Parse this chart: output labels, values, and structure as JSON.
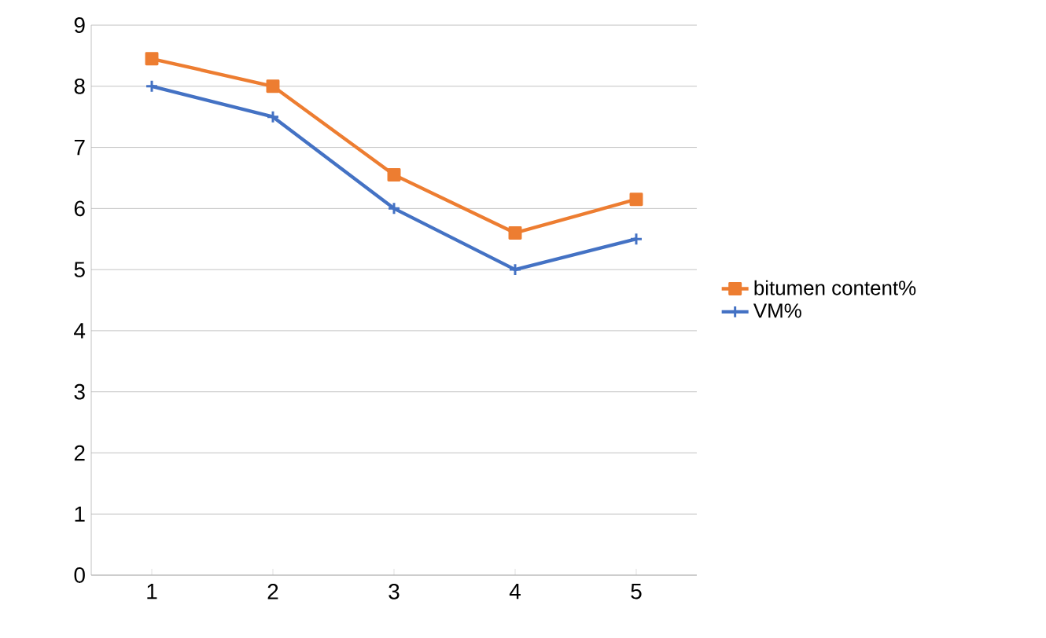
{
  "chart_data": {
    "type": "line",
    "categories": [
      "1",
      "2",
      "3",
      "4",
      "5"
    ],
    "series": [
      {
        "name": "bitumen content%",
        "color": "#ed7d31",
        "marker": "square",
        "values": [
          8.45,
          8.0,
          6.55,
          5.6,
          6.15
        ]
      },
      {
        "name": "VM%",
        "color": "#4472c4",
        "marker": "cross",
        "values": [
          8.0,
          7.5,
          6.0,
          5.0,
          5.5
        ]
      }
    ],
    "ylim": [
      0,
      9
    ],
    "yticks": [
      0,
      1,
      2,
      3,
      4,
      5,
      6,
      7,
      8,
      9
    ],
    "grid": "y",
    "legend": "right"
  }
}
